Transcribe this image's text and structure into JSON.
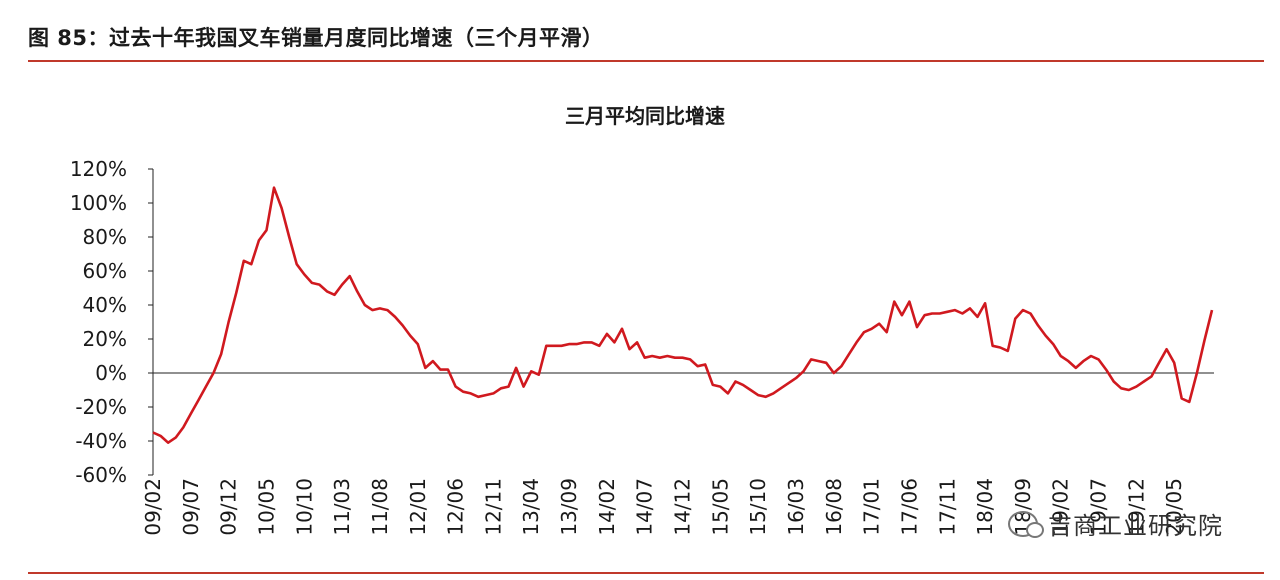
{
  "figure": {
    "header": "图 85：过去十年我国叉车销量月度同比增速（三个月平滑）"
  },
  "watermark": {
    "text": "吉商工业研究院",
    "icon": "wechat-icon"
  },
  "colors": {
    "line": "#d0191f",
    "rule": "#c0392b",
    "axis": "#222222"
  },
  "chart_data": {
    "type": "line",
    "title": "三月平均同比增速",
    "xlabel": "",
    "ylabel": "",
    "ylim": [
      -60,
      120
    ],
    "yticks": [
      -60,
      -40,
      -20,
      0,
      20,
      40,
      60,
      80,
      100,
      120
    ],
    "ytick_labels": [
      "-60%",
      "-40%",
      "-20%",
      "0%",
      "20%",
      "40%",
      "60%",
      "80%",
      "100%",
      "120%"
    ],
    "grid": false,
    "legend": "none",
    "x_start": "09/02",
    "x_end": "20/05",
    "tick_labels": [
      "09/02",
      "09/07",
      "09/12",
      "10/05",
      "10/10",
      "11/03",
      "11/08",
      "12/01",
      "12/06",
      "12/11",
      "13/04",
      "13/09",
      "14/02",
      "14/07",
      "14/12",
      "15/05",
      "15/10",
      "16/03",
      "16/08",
      "17/01",
      "17/06",
      "17/11",
      "18/04",
      "18/09",
      "19/02",
      "19/07",
      "19/12",
      "20/05"
    ],
    "series": [
      {
        "name": "",
        "values": [
          -35,
          -37,
          -41,
          -38,
          -32,
          -24,
          -16,
          -8,
          0,
          11,
          30,
          47,
          66,
          64,
          78,
          84,
          109,
          97,
          80,
          64,
          58,
          53,
          52,
          48,
          46,
          52,
          57,
          48,
          40,
          37,
          38,
          37,
          33,
          28,
          22,
          17,
          3,
          7,
          2,
          2,
          -8,
          -11,
          -12,
          -14,
          -13,
          -12,
          -9,
          -8,
          3,
          -8,
          1,
          -1,
          16,
          16,
          16,
          17,
          17,
          18,
          18,
          16,
          23,
          18,
          26,
          14,
          18,
          9,
          10,
          9,
          10,
          9,
          9,
          8,
          4,
          5,
          -7,
          -8,
          -12,
          -5,
          -7,
          -10,
          -13,
          -14,
          -12,
          -9,
          -6,
          -3,
          1,
          8,
          7,
          6,
          0,
          4,
          11,
          18,
          24,
          26,
          29,
          24,
          42,
          34,
          42,
          27,
          34,
          35,
          35,
          36,
          37,
          35,
          38,
          33,
          41,
          16,
          15,
          13,
          32,
          37,
          35,
          28,
          22,
          17,
          10,
          7,
          3,
          7,
          10,
          8,
          2,
          -5,
          -9,
          -10,
          -8,
          -5,
          -2,
          6,
          14,
          6,
          -15,
          -17,
          0,
          19,
          37
        ]
      }
    ]
  }
}
